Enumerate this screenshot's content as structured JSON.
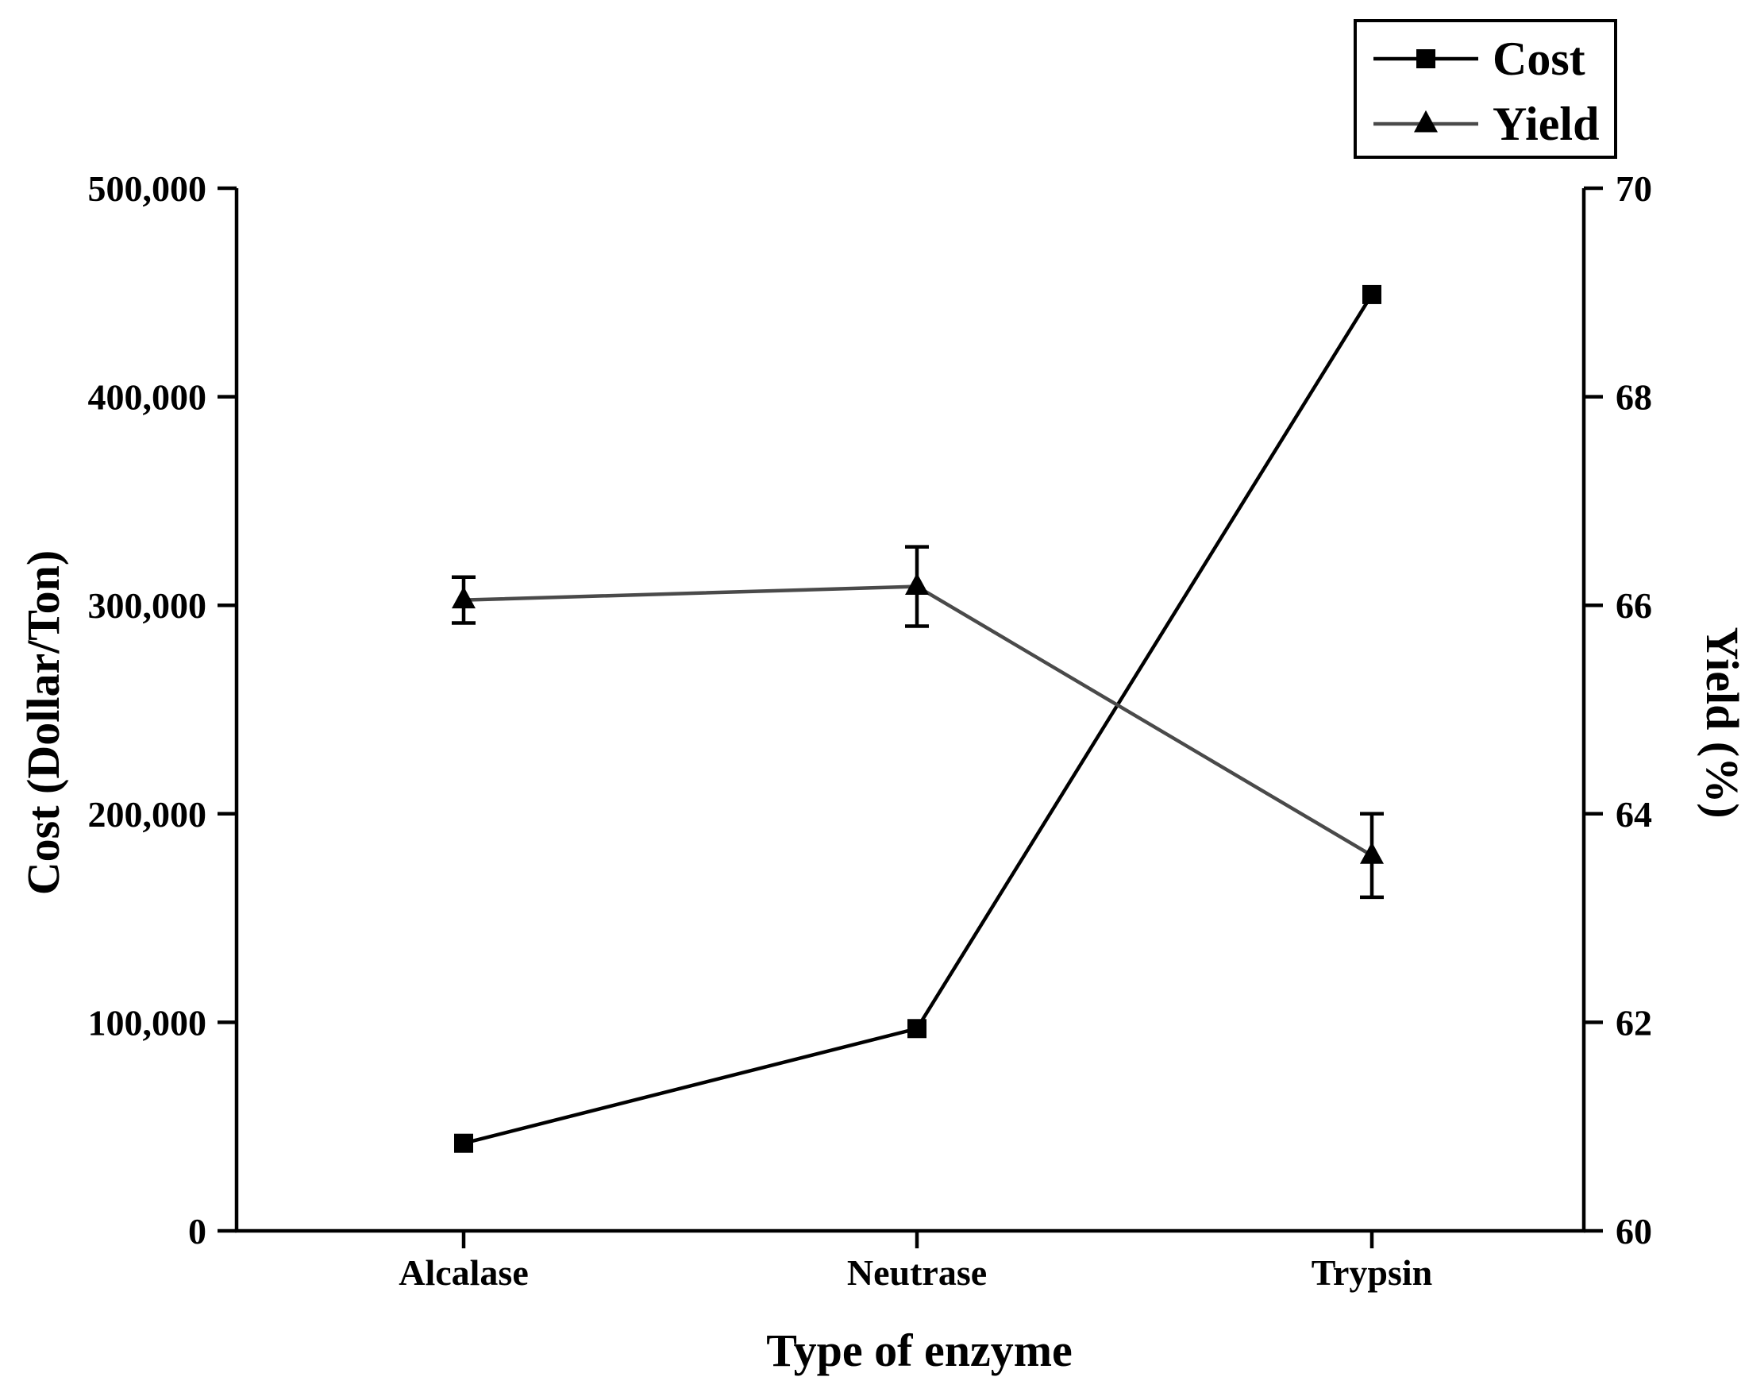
{
  "chart_data": {
    "type": "line",
    "categories": [
      "Alcalase",
      "Neutrase",
      "Trypsin"
    ],
    "xlabel": "Type of enzyme",
    "ylabel_left": "Cost (Dollar/Ton)",
    "ylabel_right": "Yield (%)",
    "ylim_left": [
      0,
      500000
    ],
    "ylim_right": [
      60,
      70
    ],
    "yticks_left": [
      0,
      100000,
      200000,
      300000,
      400000,
      500000
    ],
    "yticks_left_labels": [
      "0",
      "100,000",
      "200,000",
      "300,000",
      "400,000",
      "500,000"
    ],
    "yticks_right": [
      60,
      62,
      64,
      66,
      68,
      70
    ],
    "yticks_right_labels": [
      "60",
      "62",
      "64",
      "66",
      "68",
      "70"
    ],
    "legend_position": "top-right",
    "series": [
      {
        "name": "Cost",
        "axis": "left",
        "marker": "square",
        "color": "#000000",
        "values": [
          42000,
          97000,
          449000
        ]
      },
      {
        "name": "Yield",
        "axis": "right",
        "marker": "triangle",
        "color": "#4a4a4a",
        "values": [
          66.05,
          66.18,
          63.6
        ],
        "error": [
          0.22,
          0.38,
          0.4
        ]
      }
    ]
  }
}
